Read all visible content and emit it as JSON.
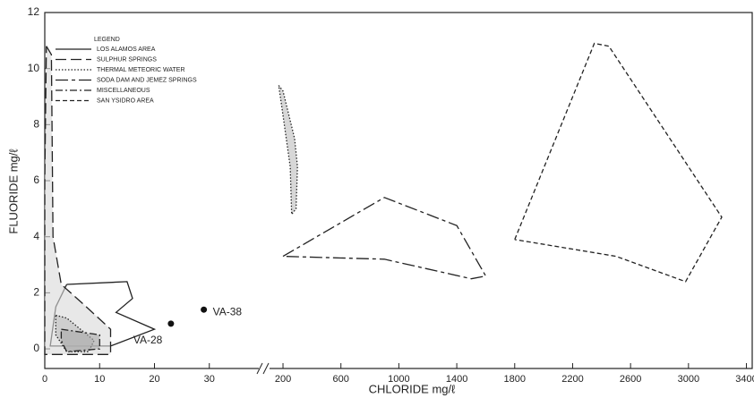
{
  "chart_data": {
    "type": "line",
    "legend_title": "LEGEND",
    "xlabel": "CHLORIDE  mg/ℓ",
    "ylabel": "FLUORIDE  mg/ℓ",
    "ylim": [
      -0.7,
      12
    ],
    "yticks": [
      0,
      2,
      4,
      6,
      8,
      10,
      12
    ],
    "x_segments": [
      {
        "xlim": [
          0,
          40
        ],
        "xticks": [
          0,
          10,
          20,
          30
        ]
      },
      {
        "xlim": [
          70,
          3440
        ],
        "xticks": [
          200,
          600,
          1000,
          1400,
          1800,
          2200,
          2600,
          3000,
          3400
        ]
      }
    ],
    "series": [
      {
        "name": "LOS ALAMOS AREA",
        "color": "#222",
        "dash": [],
        "fill": "none",
        "x": [
          4,
          15,
          16,
          13,
          20,
          12,
          1,
          2,
          4
        ],
        "y": [
          2.3,
          2.4,
          1.8,
          1.3,
          0.7,
          0.1,
          0.1,
          1.5,
          2.3
        ]
      },
      {
        "name": "SULPHUR SPRINGS",
        "color": "#222",
        "dash": [
          12,
          5
        ],
        "fill": "#d8d8d8",
        "x": [
          0.3,
          1.2,
          1.5,
          3,
          7,
          12,
          12,
          0,
          0,
          0.3
        ],
        "y": [
          10.8,
          10.5,
          4,
          2.3,
          1.6,
          0.7,
          -0.2,
          -0.2,
          6,
          10.8
        ]
      },
      {
        "name": "THERMAL METEORIC WATER",
        "color": "#222",
        "dash": [
          1.5,
          2
        ],
        "fill": "#bdbdbd",
        "x": [
          2,
          4,
          9,
          8,
          4,
          2,
          2,
          null,
          170,
          200,
          280,
          300,
          290,
          260,
          250,
          190,
          170
        ],
        "y": [
          1.2,
          1.1,
          0.3,
          -0.1,
          -0.1,
          0.5,
          1.2,
          null,
          9.4,
          9.2,
          7.5,
          6.5,
          5.0,
          4.8,
          6.5,
          8.7,
          9.4
        ]
      },
      {
        "name": "SODA DAM AND JEMEZ SPRINGS",
        "color": "#222",
        "dash": [
          14,
          4,
          4,
          4
        ],
        "fill": "none",
        "x": [
          200,
          900,
          1400,
          1600,
          1500,
          900,
          200
        ],
        "y": [
          3.3,
          5.4,
          4.4,
          2.6,
          2.5,
          3.2,
          3.3
        ]
      },
      {
        "name": "MISCELLANEOUS",
        "color": "#222",
        "dash": [
          8,
          3,
          2,
          3
        ],
        "fill": "#aaaaaa",
        "x": [
          3,
          10,
          10,
          4,
          3,
          3
        ],
        "y": [
          0.7,
          0.5,
          0,
          -0.1,
          0.3,
          0.7
        ]
      },
      {
        "name": "SAN YSIDRO AREA",
        "color": "#222",
        "dash": [
          5,
          3
        ],
        "fill": "none",
        "x": [
          1800,
          2350,
          2450,
          3230,
          2980,
          2500,
          1800
        ],
        "y": [
          3.9,
          10.9,
          10.8,
          4.7,
          2.4,
          3.3,
          3.9
        ]
      }
    ],
    "points": [
      {
        "label": "VA-28",
        "x": 23,
        "y": 0.9
      },
      {
        "label": "VA-38",
        "x": 29,
        "y": 1.4
      }
    ]
  }
}
